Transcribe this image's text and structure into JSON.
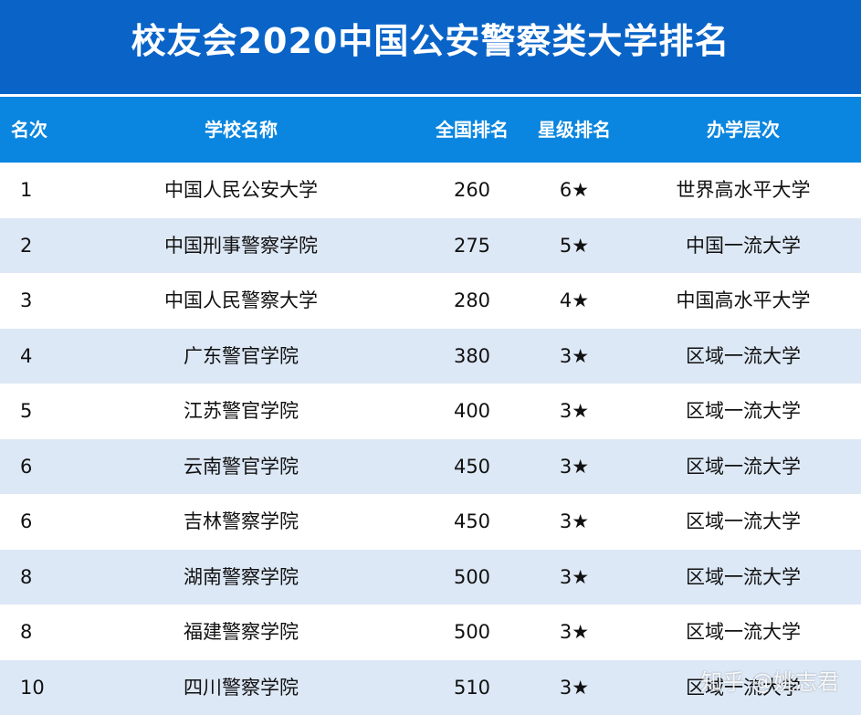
{
  "title": "校友会2020中国公安警察类大学排名",
  "headers": {
    "rank": "名次",
    "name": "学校名称",
    "national_rank": "全国排名",
    "star_rank": "星级排名",
    "level": "办学层次"
  },
  "rows": [
    {
      "rank": "1",
      "name": "中国人民公安大学",
      "national_rank": "260",
      "star_rank": "6★",
      "level": "世界高水平大学"
    },
    {
      "rank": "2",
      "name": "中国刑事警察学院",
      "national_rank": "275",
      "star_rank": "5★",
      "level": "中国一流大学"
    },
    {
      "rank": "3",
      "name": "中国人民警察大学",
      "national_rank": "280",
      "star_rank": "4★",
      "level": "中国高水平大学"
    },
    {
      "rank": "4",
      "name": "广东警官学院",
      "national_rank": "380",
      "star_rank": "3★",
      "level": "区域一流大学"
    },
    {
      "rank": "5",
      "name": "江苏警官学院",
      "national_rank": "400",
      "star_rank": "3★",
      "level": "区域一流大学"
    },
    {
      "rank": "6",
      "name": "云南警官学院",
      "national_rank": "450",
      "star_rank": "3★",
      "level": "区域一流大学"
    },
    {
      "rank": "6",
      "name": "吉林警察学院",
      "national_rank": "450",
      "star_rank": "3★",
      "level": "区域一流大学"
    },
    {
      "rank": "8",
      "name": "湖南警察学院",
      "national_rank": "500",
      "star_rank": "3★",
      "level": "区域一流大学"
    },
    {
      "rank": "8",
      "name": "福建警察学院",
      "national_rank": "500",
      "star_rank": "3★",
      "level": "区域一流大学"
    },
    {
      "rank": "10",
      "name": "四川警察学院",
      "national_rank": "510",
      "star_rank": "3★",
      "level": "区域一流大学"
    }
  ],
  "watermark": "知乎 @姚志君",
  "colors": {
    "title_bg": "#0a64c8",
    "header_bg": "#0a86e0",
    "row_alt_bg": "#dde8f6",
    "row_bg": "#ffffff"
  }
}
